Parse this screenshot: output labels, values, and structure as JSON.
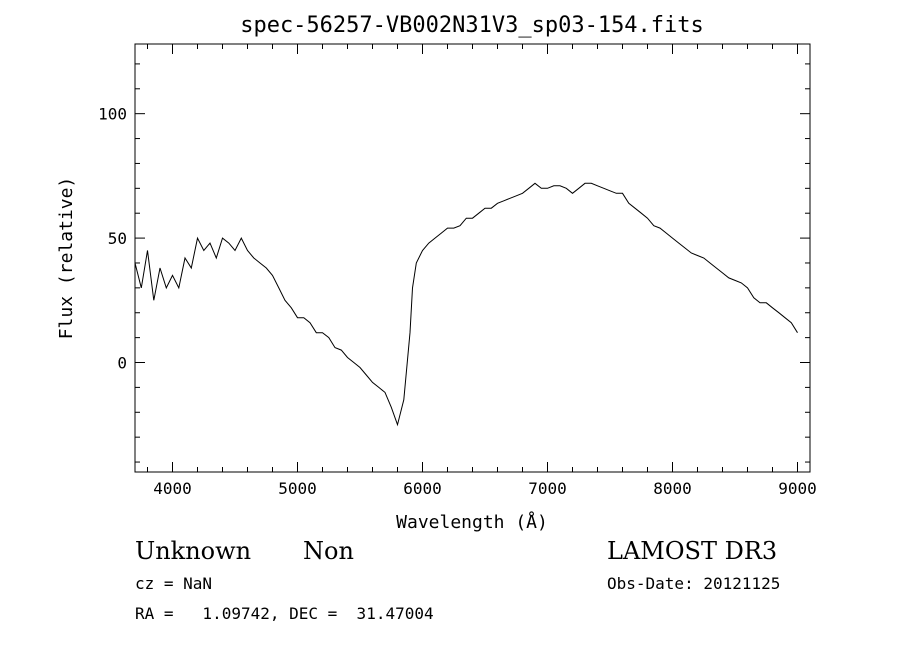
{
  "chart_data": {
    "type": "line",
    "title": "spec-56257-VB002N31V3_sp03-154.fits",
    "xlabel": "Wavelength (Å)",
    "ylabel": "Flux (relative)",
    "xlim": [
      3700,
      9100
    ],
    "ylim": [
      -44,
      128
    ],
    "xticks": [
      4000,
      5000,
      6000,
      7000,
      8000,
      9000
    ],
    "yticks": [
      0,
      50,
      100
    ],
    "grid": false,
    "series": [
      {
        "x": [
          3700,
          3750,
          3800,
          3850,
          3900,
          3950,
          4000,
          4050,
          4100,
          4150,
          4200,
          4250,
          4300,
          4350,
          4400,
          4450,
          4500,
          4550,
          4600,
          4650,
          4700,
          4750,
          4800,
          4850,
          4900,
          4950,
          5000,
          5050,
          5100,
          5150,
          5200,
          5250,
          5300,
          5350,
          5400,
          5450,
          5500,
          5550,
          5600,
          5650,
          5700,
          5750,
          5800,
          5850,
          5900,
          5920,
          5950,
          6000,
          6050,
          6100,
          6150,
          6200,
          6250,
          6300,
          6350,
          6400,
          6450,
          6500,
          6550,
          6600,
          6650,
          6700,
          6750,
          6800,
          6850,
          6900,
          6950,
          7000,
          7050,
          7100,
          7150,
          7200,
          7250,
          7300,
          7350,
          7400,
          7450,
          7500,
          7550,
          7600,
          7650,
          7700,
          7750,
          7800,
          7850,
          7900,
          7950,
          8000,
          8050,
          8100,
          8150,
          8200,
          8250,
          8300,
          8350,
          8400,
          8450,
          8500,
          8550,
          8600,
          8650,
          8700,
          8750,
          8800,
          8850,
          8900,
          8950,
          9000
        ],
        "y": [
          40,
          30,
          45,
          25,
          38,
          30,
          35,
          30,
          42,
          38,
          50,
          45,
          48,
          42,
          50,
          48,
          45,
          50,
          45,
          42,
          40,
          38,
          35,
          30,
          25,
          22,
          18,
          18,
          16,
          12,
          12,
          10,
          6,
          5,
          2,
          0,
          -2,
          -5,
          -8,
          -10,
          -12,
          -18,
          -25,
          -15,
          12,
          30,
          40,
          45,
          48,
          50,
          52,
          54,
          54,
          55,
          58,
          58,
          60,
          62,
          62,
          64,
          65,
          66,
          67,
          68,
          70,
          72,
          70,
          70,
          71,
          71,
          70,
          68,
          70,
          72,
          72,
          71,
          70,
          69,
          68,
          68,
          64,
          62,
          60,
          58,
          55,
          54,
          52,
          50,
          48,
          46,
          44,
          43,
          42,
          40,
          38,
          36,
          34,
          33,
          32,
          30,
          26,
          24,
          24,
          22,
          20,
          18,
          16,
          12
        ]
      }
    ]
  },
  "annotations": {
    "object_class": "Unknown",
    "object_subclass": "Non",
    "survey": "LAMOST DR3",
    "cz": "cz = NaN",
    "obs_date": "Obs-Date: 20121125",
    "coords": "RA =   1.09742, DEC =  31.47004"
  }
}
